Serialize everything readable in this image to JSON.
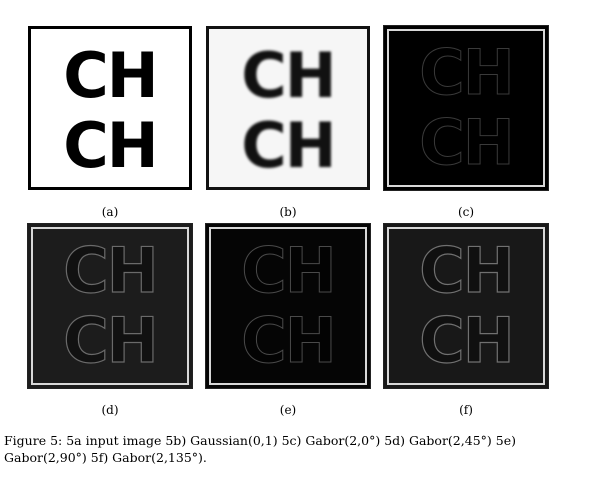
{
  "panels": [
    {
      "id": "a",
      "label": "(a)",
      "line1": "CH",
      "line2": "CH"
    },
    {
      "id": "b",
      "label": "(b)",
      "line1": "CH",
      "line2": "CH"
    },
    {
      "id": "c",
      "label": "(c)",
      "line1": "CH",
      "line2": "CH"
    },
    {
      "id": "d",
      "label": "(d)",
      "line1": "CH",
      "line2": "CH"
    },
    {
      "id": "e",
      "label": "(e)",
      "line1": "CH",
      "line2": "CH"
    },
    {
      "id": "f",
      "label": "(f)",
      "line1": "CH",
      "line2": "CH"
    }
  ],
  "caption": {
    "line1": "Figure 5:  5a input image 5b) Gaussian(0,1) 5c) Gabor(2,0°) 5d) Gabor(2,45°) 5e)",
    "line2": "Gabor(2,90°) 5f) Gabor(2,135°)."
  }
}
